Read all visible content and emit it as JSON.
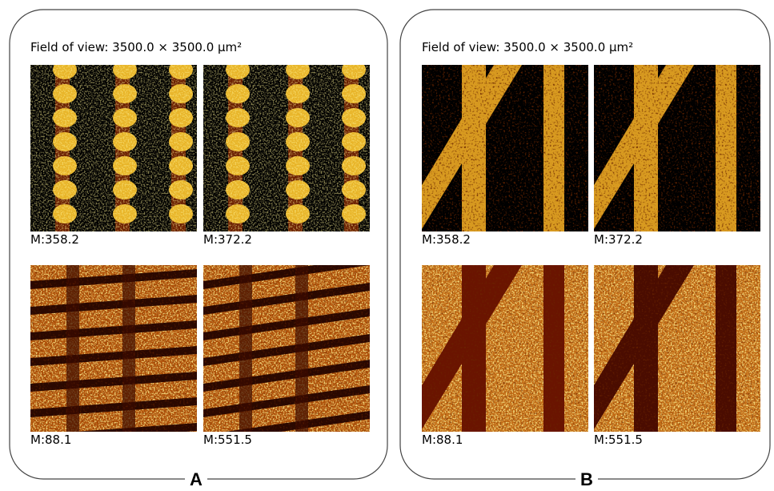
{
  "panels": [
    {
      "label": "A",
      "field_of_view": "Field of view: 3500.0 × 3500.0 µm²",
      "images": [
        {
          "label": "M:358.2"
        },
        {
          "label": "M:372.2"
        },
        {
          "label": "M:88.1"
        },
        {
          "label": "M:551.5"
        }
      ]
    },
    {
      "label": "B",
      "field_of_view": "Field of view: 3500.0 × 3500.0 µm²",
      "images": [
        {
          "label": "M:358.2"
        },
        {
          "label": "M:372.2"
        },
        {
          "label": "M:88.1"
        },
        {
          "label": "M:551.5"
        }
      ]
    }
  ]
}
